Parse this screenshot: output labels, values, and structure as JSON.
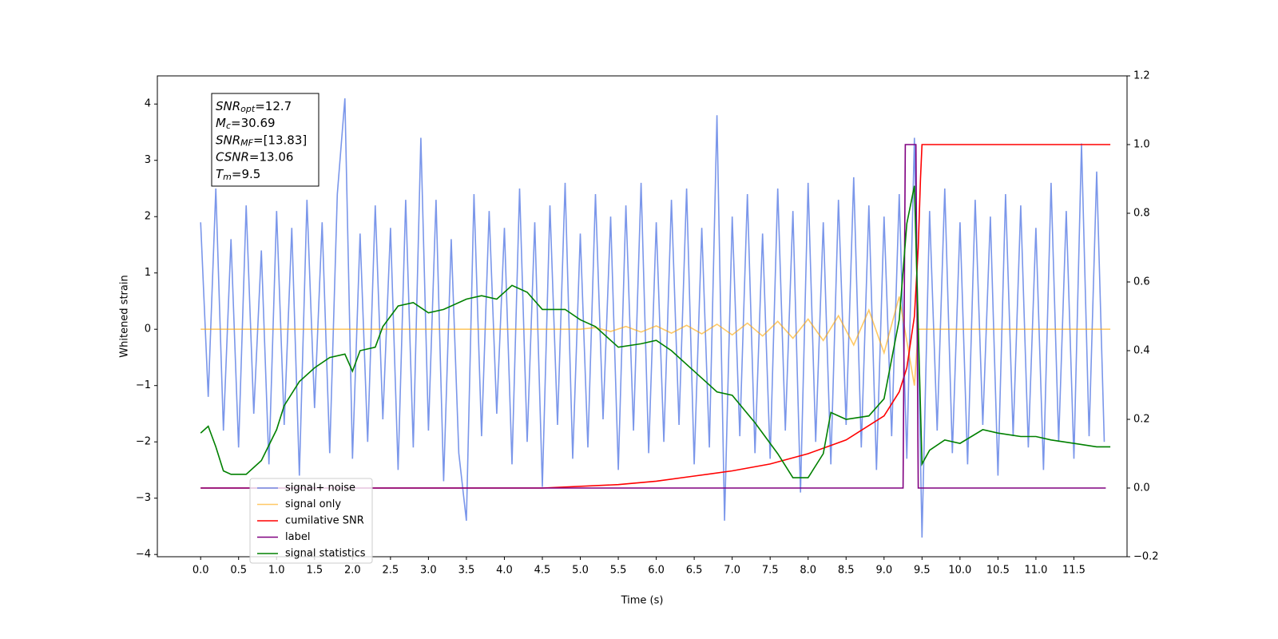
{
  "chart_data": {
    "type": "line",
    "xlabel": "Time (s)",
    "ylabel": "Whitened strain",
    "xlim": [
      -0.57,
      12.2
    ],
    "ylim": [
      -4.04,
      4.5
    ],
    "y2lim": [
      -0.2,
      1.2
    ],
    "xticks": [
      {
        "value": 0,
        "label": "0.0"
      },
      0.5,
      {
        "value": 1,
        "label": "1.0"
      },
      1.5,
      {
        "value": 2,
        "label": "2.0"
      },
      2.5,
      {
        "value": 3,
        "label": "3.0"
      },
      3.5,
      {
        "value": 4,
        "label": "4.0"
      },
      4.5,
      {
        "value": 5,
        "label": "5.0"
      },
      5.5,
      {
        "value": 6,
        "label": "6.0"
      },
      6.5,
      {
        "value": 7,
        "label": "7.0"
      },
      7.5,
      {
        "value": 8,
        "label": "8.0"
      },
      8.5,
      {
        "value": 9,
        "label": "9.0"
      },
      9.5,
      {
        "value": 10,
        "label": "10.0"
      },
      10.5,
      {
        "value": 11,
        "label": "11.0"
      },
      11.5
    ],
    "yticks": [
      {
        "value": -4,
        "label": "−4"
      },
      {
        "value": -3,
        "label": "−3"
      },
      {
        "value": -2,
        "label": "−2"
      },
      {
        "value": -1,
        "label": "−1"
      },
      0,
      1,
      2,
      3,
      4
    ],
    "y2ticks": [
      {
        "value": -0.2,
        "label": "−0.2"
      },
      {
        "value": 0,
        "label": "0.0"
      },
      0.2,
      0.4,
      0.6,
      0.8,
      {
        "value": 1,
        "label": "1.0"
      },
      {
        "value": 1.2,
        "label": "1.2"
      }
    ],
    "legend": "lower left",
    "annotation": [
      {
        "main": "SNR",
        "sub": "opt",
        "rest": "=12.7"
      },
      {
        "main": "M",
        "sub": "c",
        "rest": "=30.69"
      },
      {
        "main": "SNR",
        "sub": "MF",
        "rest": "=[13.83]"
      },
      {
        "main": "CSNR",
        "rest": "=13.06"
      },
      {
        "main": "T",
        "sub": "m",
        "rest": "=9.5"
      }
    ],
    "series": [
      {
        "name": "signal+ noise",
        "color": "#4169e1",
        "alpha": 0.7,
        "x": [
          0,
          0.1,
          0.2,
          0.3,
          0.4,
          0.5,
          0.6,
          0.7,
          0.8,
          0.9,
          1,
          1.1,
          1.2,
          1.3,
          1.4,
          1.5,
          1.6,
          1.7,
          1.8,
          1.9,
          2,
          2.1,
          2.2,
          2.3,
          2.4,
          2.5,
          2.6,
          2.7,
          2.8,
          2.9,
          3,
          3.1,
          3.2,
          3.3,
          3.4,
          3.5,
          3.6,
          3.7,
          3.8,
          3.9,
          4,
          4.1,
          4.2,
          4.3,
          4.4,
          4.5,
          4.6,
          4.7,
          4.8,
          4.9,
          5,
          5.1,
          5.2,
          5.3,
          5.4,
          5.5,
          5.6,
          5.7,
          5.8,
          5.9,
          6,
          6.1,
          6.2,
          6.3,
          6.4,
          6.5,
          6.6,
          6.7,
          6.8,
          6.9,
          7,
          7.1,
          7.2,
          7.3,
          7.4,
          7.5,
          7.6,
          7.7,
          7.8,
          7.9,
          8,
          8.1,
          8.2,
          8.3,
          8.4,
          8.5,
          8.6,
          8.7,
          8.8,
          8.9,
          9,
          9.1,
          9.2,
          9.3,
          9.4,
          9.5,
          9.6,
          9.7,
          9.8,
          9.9,
          10,
          10.1,
          10.2,
          10.3,
          10.4,
          10.5,
          10.6,
          10.7,
          10.8,
          10.9,
          11,
          11.1,
          11.2,
          11.3,
          11.4,
          11.5,
          11.6,
          11.7,
          11.8,
          11.9
        ],
        "values": [
          1.9,
          -1.2,
          2.5,
          -1.8,
          1.6,
          -2.1,
          2.2,
          -1.5,
          1.4,
          -2.4,
          2.1,
          -1.7,
          1.8,
          -2.6,
          2.3,
          -1.4,
          1.9,
          -2.2,
          2.4,
          4.1,
          -2.3,
          1.7,
          -2.0,
          2.2,
          -1.6,
          1.8,
          -2.5,
          2.3,
          -2.1,
          3.4,
          -1.8,
          2.3,
          -2.7,
          1.6,
          -2.2,
          -3.4,
          2.4,
          -1.9,
          2.1,
          -1.5,
          1.8,
          -2.4,
          2.5,
          -2.0,
          1.9,
          -2.8,
          2.2,
          -1.7,
          2.6,
          -2.3,
          1.7,
          -2.1,
          2.4,
          -1.6,
          2.0,
          -2.5,
          2.2,
          -1.8,
          2.6,
          -2.2,
          1.9,
          -2.0,
          2.3,
          -1.7,
          2.5,
          -2.4,
          1.8,
          -2.1,
          3.8,
          -3.4,
          2.0,
          -1.9,
          2.4,
          -2.2,
          1.7,
          -2.3,
          2.5,
          -1.8,
          2.1,
          -2.9,
          2.6,
          -2.0,
          1.9,
          -2.4,
          2.3,
          -1.7,
          2.7,
          -2.1,
          2.2,
          -2.5,
          2.0,
          -1.9,
          2.4,
          -2.3,
          3.4,
          -3.7,
          2.1,
          -1.8,
          2.5,
          -2.2,
          1.9,
          -2.4,
          2.3,
          -1.7,
          2.0,
          -2.6,
          2.4,
          -1.9,
          2.2,
          -2.1,
          1.8,
          -2.5,
          2.6,
          -2.0,
          2.1,
          -2.3,
          3.3,
          -1.9,
          2.8,
          -2.0
        ]
      },
      {
        "name": "signal only",
        "color": "#ffa500",
        "alpha": 0.6,
        "x": [
          0,
          5.0,
          5.2,
          5.4,
          5.6,
          5.8,
          6.0,
          6.2,
          6.4,
          6.6,
          6.8,
          7.0,
          7.2,
          7.4,
          7.6,
          7.8,
          8.0,
          8.2,
          8.4,
          8.6,
          8.8,
          9.0,
          9.2,
          9.4,
          9.45,
          11.98
        ],
        "values": [
          0,
          0,
          0.03,
          -0.04,
          0.05,
          -0.05,
          0.06,
          -0.07,
          0.07,
          -0.08,
          0.09,
          -0.1,
          0.11,
          -0.12,
          0.14,
          -0.16,
          0.18,
          -0.2,
          0.24,
          -0.28,
          0.34,
          -0.42,
          0.58,
          -1.0,
          0,
          0
        ]
      },
      {
        "name": "cumilative SNR",
        "color": "#ff0000",
        "alpha": 1,
        "axis": "y2",
        "x": [
          0,
          4.5,
          5.5,
          6.0,
          6.5,
          7.0,
          7.5,
          8.0,
          8.5,
          9.0,
          9.2,
          9.3,
          9.4,
          9.45,
          9.48,
          9.5,
          11.98
        ],
        "values": [
          0,
          0,
          0.01,
          0.02,
          0.035,
          0.05,
          0.07,
          0.1,
          0.14,
          0.21,
          0.28,
          0.35,
          0.5,
          0.7,
          0.9,
          1.0,
          1.0
        ]
      },
      {
        "name": "label",
        "color": "#800080",
        "alpha": 1,
        "axis": "y2",
        "x": [
          0,
          9.25,
          9.28,
          9.42,
          9.45,
          11.92
        ],
        "values": [
          0,
          0,
          1,
          1,
          0,
          0
        ]
      },
      {
        "name": "signal statistics",
        "color": "#008000",
        "alpha": 1,
        "axis": "y2",
        "x": [
          0,
          0.1,
          0.2,
          0.3,
          0.4,
          0.6,
          0.8,
          1.0,
          1.1,
          1.3,
          1.5,
          1.7,
          1.9,
          2.0,
          2.1,
          2.3,
          2.4,
          2.6,
          2.8,
          3.0,
          3.2,
          3.5,
          3.7,
          3.9,
          4.1,
          4.3,
          4.5,
          4.8,
          5.0,
          5.2,
          5.5,
          5.8,
          6.0,
          6.2,
          6.5,
          6.8,
          7.0,
          7.3,
          7.6,
          7.8,
          8.0,
          8.2,
          8.3,
          8.5,
          8.8,
          9.0,
          9.2,
          9.3,
          9.4,
          9.5,
          9.6,
          9.8,
          10.0,
          10.3,
          10.5,
          10.8,
          11.0,
          11.2,
          11.5,
          11.8,
          11.98
        ],
        "values": [
          0.16,
          0.18,
          0.12,
          0.05,
          0.04,
          0.04,
          0.08,
          0.17,
          0.24,
          0.31,
          0.35,
          0.38,
          0.39,
          0.34,
          0.4,
          0.41,
          0.47,
          0.53,
          0.54,
          0.51,
          0.52,
          0.55,
          0.56,
          0.55,
          0.59,
          0.57,
          0.52,
          0.52,
          0.49,
          0.47,
          0.41,
          0.42,
          0.43,
          0.4,
          0.34,
          0.28,
          0.27,
          0.19,
          0.1,
          0.03,
          0.03,
          0.1,
          0.22,
          0.2,
          0.21,
          0.26,
          0.49,
          0.77,
          0.88,
          0.07,
          0.11,
          0.14,
          0.13,
          0.17,
          0.16,
          0.15,
          0.15,
          0.14,
          0.13,
          0.12,
          0.12
        ]
      }
    ]
  }
}
